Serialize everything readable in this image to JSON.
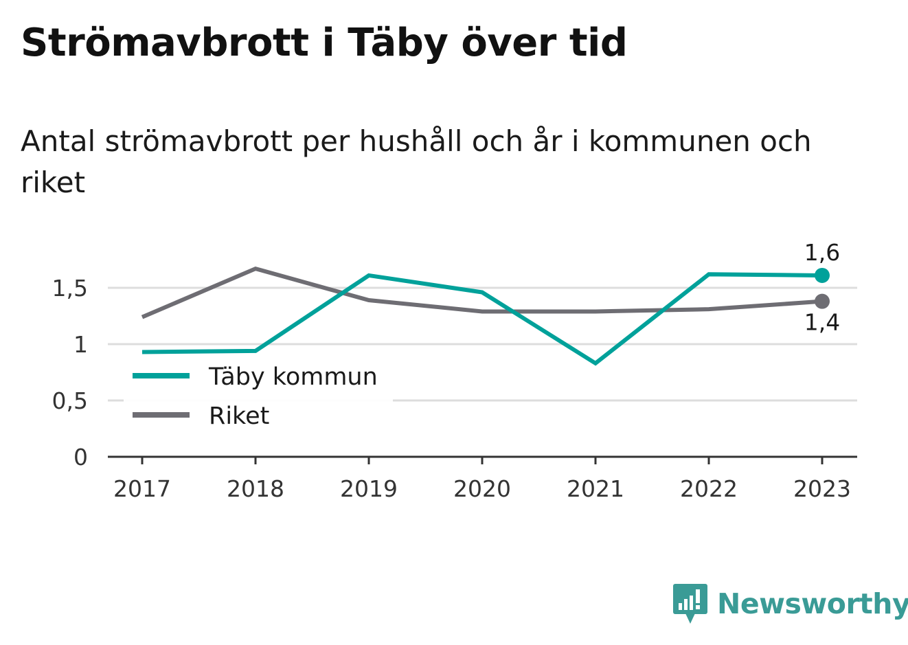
{
  "header": {
    "title": "Strömavbrott i Täby över tid",
    "subtitle": "Antal strömavbrott per hushåll och år i kommunen och riket"
  },
  "brand": {
    "name": "Newsworthy",
    "icon": "newsworthy-logo-icon",
    "color": "#3a9b96"
  },
  "chart_data": {
    "type": "line",
    "title": "Strömavbrott i Täby över tid",
    "subtitle": "Antal strömavbrott per hushåll och år i kommunen och riket",
    "xlabel": "",
    "ylabel": "",
    "x": [
      "2017",
      "2018",
      "2019",
      "2020",
      "2021",
      "2022",
      "2023"
    ],
    "ylim": [
      0,
      1.65
    ],
    "yticks": [
      0,
      0.5,
      1,
      1.5
    ],
    "ytick_labels": [
      "0",
      "0,5",
      "1",
      "1,5"
    ],
    "grid": true,
    "legend_position": "bottom-left",
    "series": [
      {
        "name": "Täby kommun",
        "color": "#00a19a",
        "values": [
          0.93,
          0.94,
          1.61,
          1.46,
          0.83,
          1.62,
          1.61
        ],
        "end_label": "1,6"
      },
      {
        "name": "Riket",
        "color": "#6e6d73",
        "values": [
          1.24,
          1.67,
          1.39,
          1.29,
          1.29,
          1.31,
          1.38
        ],
        "end_label": "1,4"
      }
    ]
  }
}
